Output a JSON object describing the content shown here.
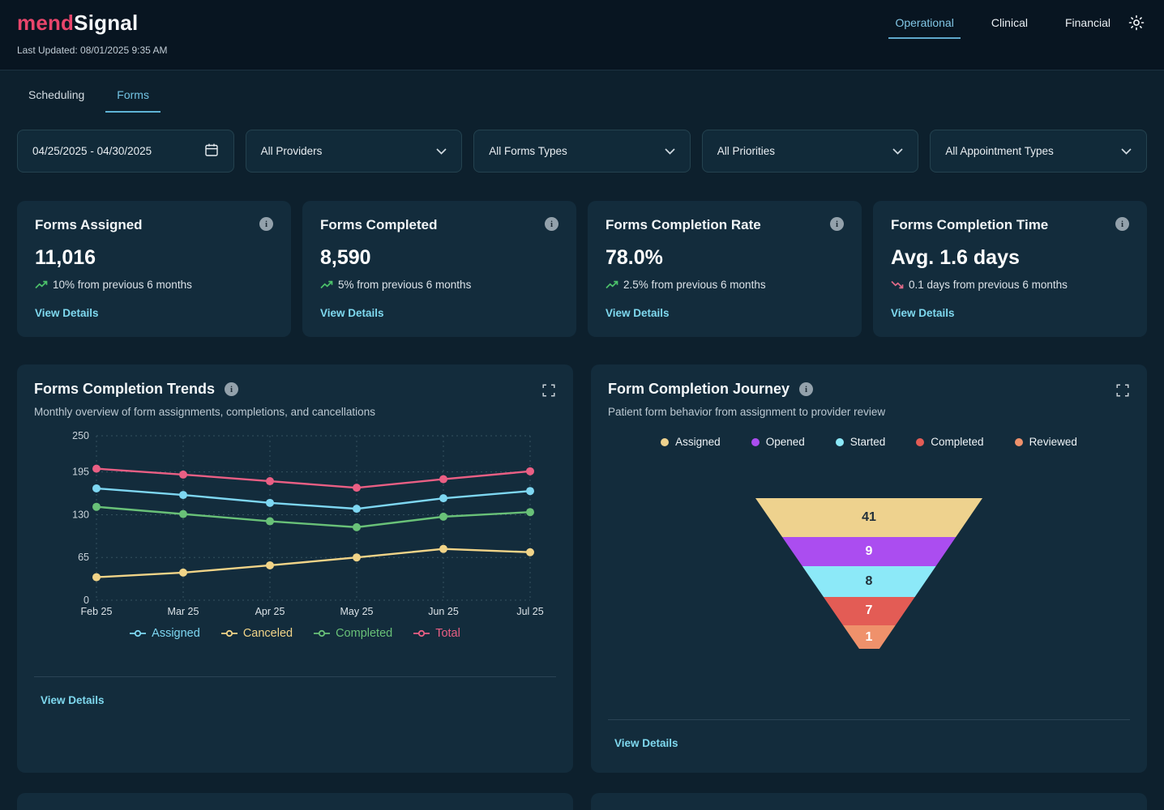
{
  "header": {
    "logo_part1": "mend",
    "logo_part2": "Signal",
    "last_updated": "Last Updated: 08/01/2025 9:35 AM",
    "nav": [
      {
        "label": "Operational",
        "active": true
      },
      {
        "label": "Clinical",
        "active": false
      },
      {
        "label": "Financial",
        "active": false
      }
    ],
    "theme_icon": "sun-icon"
  },
  "subtabs": [
    {
      "label": "Scheduling",
      "active": false
    },
    {
      "label": "Forms",
      "active": true
    }
  ],
  "filters": {
    "date_range": "04/25/2025 - 04/30/2025",
    "dropdowns": [
      "All Providers",
      "All Forms Types",
      "All Priorities",
      "All Appointment Types"
    ]
  },
  "kpis": [
    {
      "title": "Forms Assigned",
      "value": "11,016",
      "trend": "10% from previous 6 months",
      "trend_direction": "up",
      "link": "View Details"
    },
    {
      "title": "Forms Completed",
      "value": "8,590",
      "trend": "5% from previous 6 months",
      "trend_direction": "up",
      "link": "View Details"
    },
    {
      "title": "Forms Completion Rate",
      "value": "78.0%",
      "trend": "2.5% from previous 6 months",
      "trend_direction": "up",
      "link": "View Details"
    },
    {
      "title": "Forms Completion Time",
      "value": "Avg. 1.6 days",
      "trend": "0.1 days from previous 6 months",
      "trend_direction": "down",
      "link": "View Details"
    }
  ],
  "trends_card": {
    "title": "Forms Completion Trends",
    "subtitle": "Monthly overview of form assignments, completions, and cancellations",
    "link": "View Details"
  },
  "journey_card": {
    "title": "Form Completion Journey",
    "subtitle": "Patient form behavior from assignment to provider review",
    "link": "View Details"
  },
  "chart_data": [
    {
      "type": "line",
      "title": "Forms Completion Trends",
      "x": [
        "Feb 25",
        "Mar 25",
        "Apr 25",
        "May 25",
        "Jun 25",
        "Jul 25"
      ],
      "yticks": [
        0,
        65,
        130,
        195,
        250
      ],
      "ylim": [
        0,
        250
      ],
      "grid": true,
      "legend_position": "bottom",
      "series": [
        {
          "name": "Assigned",
          "color": "#7ed7f2",
          "values": [
            170,
            160,
            148,
            139,
            155,
            166
          ]
        },
        {
          "name": "Canceled",
          "color": "#f1d488",
          "values": [
            35,
            42,
            53,
            65,
            78,
            73
          ]
        },
        {
          "name": "Completed",
          "color": "#69c178",
          "values": [
            142,
            131,
            120,
            111,
            127,
            134
          ]
        },
        {
          "name": "Total",
          "color": "#ea5f84",
          "values": [
            200,
            191,
            181,
            171,
            184,
            196
          ]
        }
      ]
    },
    {
      "type": "funnel",
      "title": "Form Completion Journey",
      "legend_position": "top",
      "stages": [
        {
          "label": "Assigned",
          "value": 41,
          "color": "#eed28e",
          "text": "dark"
        },
        {
          "label": "Opened",
          "value": 9,
          "color": "#ab4df0",
          "text": "light"
        },
        {
          "label": "Started",
          "value": 8,
          "color": "#8ce9f8",
          "text": "dark"
        },
        {
          "label": "Completed",
          "value": 7,
          "color": "#e35c55",
          "text": "light"
        },
        {
          "label": "Reviewed",
          "value": 1,
          "color": "#ef916b",
          "text": "light"
        }
      ],
      "heights_pct": [
        26,
        19,
        20.5,
        19,
        15.5
      ]
    }
  ],
  "colors": {
    "accent_cyan": "#7fd9ef",
    "brand_pink": "#e8456b",
    "trend_up_green": "#4cc26a",
    "trend_down_red": "#e06a88",
    "grid": "#35525f",
    "card_bg": "#132c3c"
  }
}
